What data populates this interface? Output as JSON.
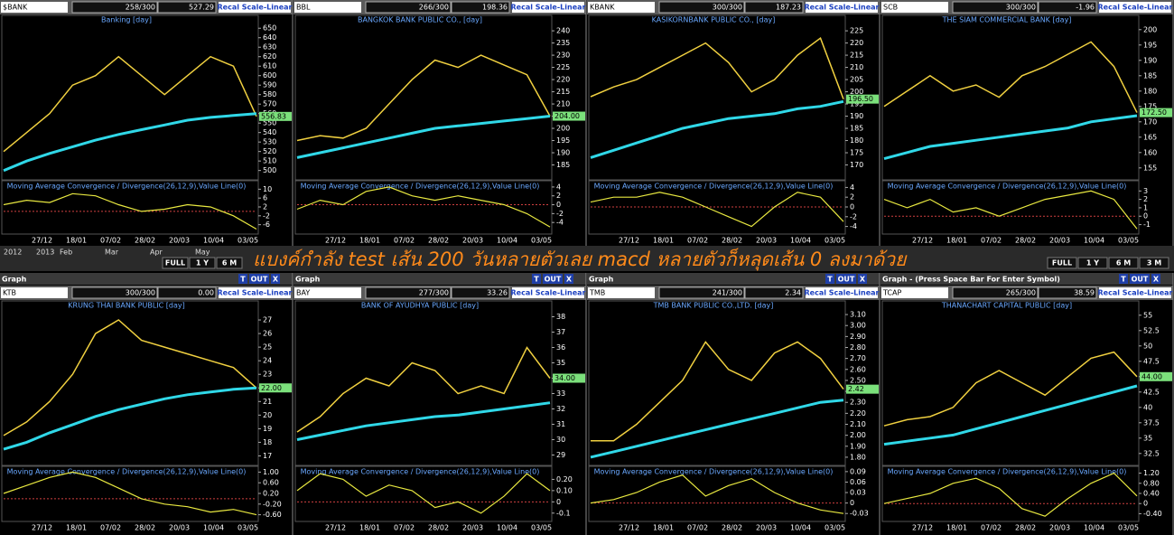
{
  "toolbar": {
    "years": [
      "2012",
      "2013"
    ],
    "months": [
      "Feb",
      "Mar",
      "Apr",
      "May"
    ],
    "buttons": [
      "FULL",
      "1 Y",
      "6 M"
    ],
    "buttons_right": [
      "FULL",
      "1 Y",
      "6 M",
      "3 M"
    ]
  },
  "overlay_text": "แบงค์กำลัง test เส้น 200 วันหลายตัวเลย macd หลายตัวก็หลุดเส้น 0 ลงมาด้วย",
  "chart_data": [
    {
      "type": "line",
      "symbol": "$BANK",
      "counter": "258/300",
      "last": "527.29",
      "button": "Recal Scale-Linear",
      "title": "Banking [day]",
      "ylim": [
        493,
        655
      ],
      "yticks": [
        500,
        510,
        520,
        530,
        540,
        550,
        560,
        570,
        580,
        590,
        600,
        610,
        620,
        630,
        640,
        650
      ],
      "last_label": "556.83",
      "series": [
        {
          "color": "#f0d040",
          "values": [
            520,
            540,
            560,
            590,
            600,
            620,
            600,
            580,
            600,
            620,
            610,
            557
          ]
        },
        {
          "color": "#30d8e8",
          "values": [
            500,
            510,
            518,
            525,
            532,
            538,
            543,
            548,
            553,
            556,
            558,
            560
          ]
        }
      ],
      "macd": {
        "title": "Moving Average Convergence / Divergence(26,12,9),Value Line(0)",
        "color": "#e8e840",
        "ylim": [
          -9,
          13
        ],
        "yticks": [
          10,
          6,
          2,
          -2,
          -6
        ],
        "values": [
          3,
          5,
          4,
          8,
          7,
          3,
          0,
          1,
          3,
          2,
          -2,
          -8
        ]
      },
      "date_labels": [
        "27/12",
        "18/01",
        "07/02",
        "28/02",
        "20/03",
        "10/04",
        "03/05"
      ]
    },
    {
      "type": "line",
      "symbol": "BBL",
      "counter": "266/300",
      "last": "198.36",
      "button": "Recal Scale-Linear",
      "title": "BANGKOK BANK PUBLIC CO., [day]",
      "ylim": [
        180,
        243
      ],
      "yticks": [
        185,
        190,
        195,
        200,
        205,
        210,
        215,
        220,
        225,
        230,
        235,
        240
      ],
      "last_label": "204.00",
      "series": [
        {
          "color": "#f0d040",
          "values": [
            195,
            197,
            196,
            200,
            210,
            220,
            228,
            225,
            230,
            226,
            222,
            205
          ]
        },
        {
          "color": "#30d8e8",
          "values": [
            188,
            190,
            192,
            194,
            196,
            198,
            200,
            201,
            202,
            203,
            204,
            205
          ]
        }
      ],
      "macd": {
        "title": "Moving Average Convergence / Divergence(26,12,9),Value Line(0)",
        "color": "#e8e840",
        "ylim": [
          -6,
          5
        ],
        "yticks": [
          4,
          2,
          0,
          -2,
          -4
        ],
        "values": [
          -1,
          1,
          0,
          3,
          4,
          2,
          1,
          2,
          1,
          0,
          -2,
          -5
        ]
      },
      "date_labels": [
        "27/12",
        "18/01",
        "07/02",
        "28/02",
        "20/03",
        "10/04",
        "03/05"
      ]
    },
    {
      "type": "line",
      "symbol": "KBANK",
      "counter": "300/300",
      "last": "187.23",
      "button": "Recal Scale-Linear",
      "title": "KASIKORNBANK PUBLIC CO., [day]",
      "ylim": [
        165,
        228
      ],
      "yticks": [
        170,
        175,
        180,
        185,
        190,
        195,
        200,
        205,
        210,
        215,
        220,
        225
      ],
      "last_label": "196.50",
      "series": [
        {
          "color": "#f0d040",
          "values": [
            198,
            202,
            205,
            210,
            215,
            220,
            212,
            200,
            205,
            215,
            222,
            197
          ]
        },
        {
          "color": "#30d8e8",
          "values": [
            173,
            176,
            179,
            182,
            185,
            187,
            189,
            190,
            191,
            193,
            194,
            196
          ]
        }
      ],
      "macd": {
        "title": "Moving Average Convergence / Divergence(26,12,9),Value Line(0)",
        "color": "#e8e840",
        "ylim": [
          -5,
          5
        ],
        "yticks": [
          4,
          2,
          0,
          -2,
          -4
        ],
        "values": [
          1,
          2,
          2,
          3,
          2,
          0,
          -2,
          -4,
          0,
          3,
          2,
          -3
        ]
      },
      "date_labels": [
        "27/12",
        "18/01",
        "07/02",
        "28/02",
        "20/03",
        "10/04",
        "03/05"
      ]
    },
    {
      "type": "line",
      "symbol": "SCB",
      "counter": "300/300",
      "last": "-1.96",
      "button": "Recal Scale-Linear",
      "title": "THE SIAM COMMERCIAL BANK [day]",
      "ylim": [
        152,
        202
      ],
      "yticks": [
        155,
        160,
        165,
        170,
        175,
        180,
        185,
        190,
        195,
        200
      ],
      "last_label": "172.50",
      "series": [
        {
          "color": "#f0d040",
          "values": [
            175,
            180,
            185,
            180,
            182,
            178,
            185,
            188,
            192,
            196,
            188,
            173
          ]
        },
        {
          "color": "#30d8e8",
          "values": [
            158,
            160,
            162,
            163,
            164,
            165,
            166,
            167,
            168,
            170,
            171,
            172
          ]
        }
      ],
      "macd": {
        "title": "Moving Average Convergence / Divergence(26,12,9),Value Line(0)",
        "color": "#e8e840",
        "ylim": [
          -1.8,
          4
        ],
        "yticks": [
          3,
          2,
          1,
          0,
          -1
        ],
        "values": [
          2,
          1,
          2,
          0.5,
          1,
          0,
          1,
          2,
          2.5,
          3,
          2,
          -1.5
        ]
      },
      "date_labels": [
        "27/12",
        "18/01",
        "07/02",
        "28/02",
        "20/03",
        "10/04",
        "03/05"
      ]
    },
    {
      "type": "line",
      "window": "Graph",
      "window_buttons": [
        "T",
        "OUT",
        "X"
      ],
      "symbol": "KTB",
      "counter": "300/300",
      "last": "0.00",
      "button": "Recal Scale-Linear",
      "title": "KRUNG THAI BANK PUBLIC [day]",
      "ylim": [
        16.5,
        27.8
      ],
      "yticks": [
        17,
        18,
        19,
        20,
        21,
        22,
        23,
        24,
        25,
        26,
        27
      ],
      "last_label": "22.00",
      "series": [
        {
          "color": "#f0d040",
          "values": [
            18.5,
            19.5,
            21,
            23,
            26,
            27,
            25.5,
            25,
            24.5,
            24,
            23.5,
            22
          ]
        },
        {
          "color": "#30d8e8",
          "values": [
            17.5,
            18,
            18.7,
            19.3,
            19.9,
            20.4,
            20.8,
            21.2,
            21.5,
            21.7,
            21.9,
            22.0
          ]
        }
      ],
      "macd": {
        "title": "Moving Average Convergence / Divergence(26,12,9),Value Line(0)",
        "color": "#e8e840",
        "ylim": [
          -0.75,
          1.15
        ],
        "yticks": [
          {
            "value": 1,
            "label": "1.00"
          },
          {
            "value": 0.6,
            "label": "0.60"
          },
          {
            "value": 0.2,
            "label": "0.20"
          },
          {
            "value": -0.2,
            "label": "-0.20"
          },
          {
            "value": -0.6,
            "label": "-0.60"
          }
        ],
        "values": [
          0.2,
          0.5,
          0.8,
          1.0,
          0.8,
          0.4,
          0,
          -0.2,
          -0.3,
          -0.5,
          -0.4,
          -0.6
        ]
      },
      "date_labels": [
        "27/12",
        "18/01",
        "07/02",
        "28/02",
        "20/03",
        "10/04",
        "03/05"
      ]
    },
    {
      "type": "line",
      "window": "Graph",
      "window_buttons": [
        "T",
        "OUT",
        "X"
      ],
      "symbol": "BAY",
      "counter": "277/300",
      "last": "33.26",
      "button": "Recal Scale-Linear",
      "title": "BANK OF AYUDHYA PUBLIC [day]",
      "ylim": [
        28.5,
        38.5
      ],
      "yticks": [
        29,
        30,
        31,
        32,
        33,
        34,
        35,
        36,
        37,
        38
      ],
      "last_label": "34.00",
      "series": [
        {
          "color": "#f0d040",
          "values": [
            30.5,
            31.5,
            33,
            34,
            33.5,
            35,
            34.5,
            33,
            33.5,
            33,
            36,
            34
          ]
        },
        {
          "color": "#30d8e8",
          "values": [
            30,
            30.3,
            30.6,
            30.9,
            31.1,
            31.3,
            31.5,
            31.6,
            31.8,
            32,
            32.2,
            32.4
          ]
        }
      ],
      "macd": {
        "title": "Moving Average Convergence / Divergence(26,12,9),Value Line(0)",
        "color": "#e8e840",
        "ylim": [
          -0.15,
          0.3
        ],
        "yticks": [
          {
            "value": 0.2,
            "label": "0.20"
          },
          {
            "value": 0.1,
            "label": "0.10"
          },
          0,
          -0.1
        ],
        "values": [
          0.1,
          0.25,
          0.2,
          0.05,
          0.15,
          0.1,
          -0.05,
          0,
          -0.1,
          0.05,
          0.25,
          0.1
        ]
      },
      "date_labels": [
        "27/12",
        "18/01",
        "07/02",
        "28/02",
        "20/03",
        "10/04",
        "03/05"
      ]
    },
    {
      "type": "line",
      "window": "Graph",
      "window_buttons": [
        "T",
        "OUT",
        "X"
      ],
      "symbol": "TMB",
      "counter": "241/300",
      "last": "2.34",
      "button": "Recal Scale-Linear",
      "title": "TMB BANK PUBLIC CO.,LTD. [day]",
      "ylim": [
        1.75,
        3.15
      ],
      "yticks": [
        {
          "value": 1.8,
          "label": "1.80"
        },
        {
          "value": 1.9,
          "label": "1.90"
        },
        {
          "value": 2,
          "label": "2.00"
        },
        {
          "value": 2.1,
          "label": "2.10"
        },
        {
          "value": 2.2,
          "label": "2.20"
        },
        {
          "value": 2.3,
          "label": "2.30"
        },
        {
          "value": 2.4,
          "label": "2.40"
        },
        {
          "value": 2.5,
          "label": "2.50"
        },
        {
          "value": 2.6,
          "label": "2.60"
        },
        {
          "value": 2.7,
          "label": "2.70"
        },
        {
          "value": 2.8,
          "label": "2.80"
        },
        {
          "value": 2.9,
          "label": "2.90"
        },
        {
          "value": 3,
          "label": "3.00"
        },
        {
          "value": 3.1,
          "label": "3.10"
        }
      ],
      "last_label": "2.42",
      "series": [
        {
          "color": "#f0d040",
          "values": [
            1.95,
            1.95,
            2.1,
            2.3,
            2.5,
            2.85,
            2.6,
            2.5,
            2.75,
            2.85,
            2.7,
            2.42
          ]
        },
        {
          "color": "#30d8e8",
          "values": [
            1.8,
            1.85,
            1.9,
            1.95,
            2.0,
            2.05,
            2.1,
            2.15,
            2.2,
            2.25,
            2.3,
            2.32
          ]
        }
      ],
      "macd": {
        "title": "Moving Average Convergence / Divergence(26,12,9),Value Line(0)",
        "color": "#e8e840",
        "ylim": [
          -0.045,
          0.1
        ],
        "yticks": [
          0.09,
          0.06,
          0.03,
          0,
          -0.03
        ],
        "values": [
          0,
          0.01,
          0.03,
          0.06,
          0.08,
          0.02,
          0.05,
          0.07,
          0.03,
          0,
          -0.02,
          -0.03
        ]
      },
      "date_labels": [
        "27/12",
        "18/01",
        "07/02",
        "28/02",
        "20/03",
        "10/04",
        "03/05"
      ]
    },
    {
      "type": "line",
      "window": "Graph - (Press Space Bar For Enter Symbol)",
      "window_buttons": [
        "T",
        "OUT",
        "X"
      ],
      "symbol": "TCAP",
      "counter": "265/300",
      "last": "38.59",
      "button": "Recal Scale-Linear",
      "title": "THANACHART CAPITAL PUBLIC [day]",
      "ylim": [
        31,
        56
      ],
      "yticks": [
        32.5,
        35,
        37.5,
        40,
        42.5,
        45,
        47.5,
        50,
        52.5,
        55
      ],
      "last_label": "44.00",
      "series": [
        {
          "color": "#f0d040",
          "values": [
            37,
            38,
            38.5,
            40,
            44,
            46,
            44,
            42,
            45,
            48,
            49,
            45
          ]
        },
        {
          "color": "#30d8e8",
          "values": [
            34,
            34.5,
            35,
            35.5,
            36.5,
            37.5,
            38.5,
            39.5,
            40.5,
            41.5,
            42.5,
            43.5
          ]
        }
      ],
      "macd": {
        "title": "Moving Average Convergence / Divergence(26,12,9),Value Line(0)",
        "color": "#e8e840",
        "ylim": [
          -0.6,
          1.4
        ],
        "yticks": [
          {
            "value": 1.2,
            "label": "1.20"
          },
          {
            "value": 0.8,
            "label": "0.80"
          },
          {
            "value": 0.4,
            "label": "0.40"
          },
          0,
          {
            "value": -0.4,
            "label": "-0.40"
          }
        ],
        "values": [
          0,
          0.2,
          0.4,
          0.8,
          1.0,
          0.6,
          -0.2,
          -0.5,
          0.2,
          0.8,
          1.2,
          0.3
        ]
      },
      "date_labels": [
        "27/12",
        "18/01",
        "07/02",
        "28/02",
        "20/03",
        "10/04",
        "03/05"
      ]
    }
  ]
}
